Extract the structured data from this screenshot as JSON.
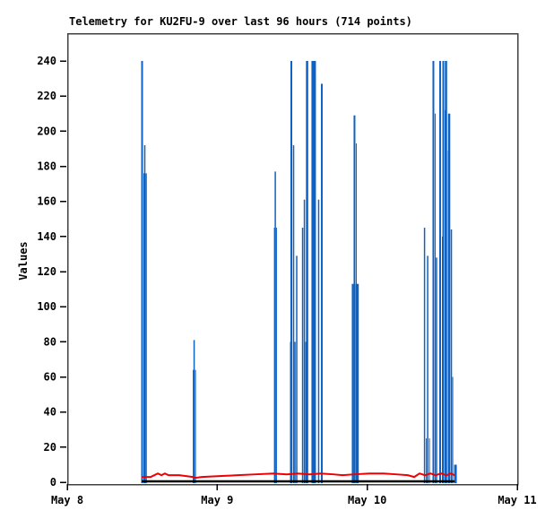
{
  "title": "Telemetry for KU2FU-9 over last 96 hours (714 points)",
  "chart_data": {
    "type": "line",
    "subtype": "impulses-plus-line",
    "title": "Telemetry for KU2FU-9 over last 96 hours (714 points)",
    "xlabel": "",
    "ylabel": "Values",
    "ylim": [
      0,
      240
    ],
    "y_ticks": [
      0,
      20,
      40,
      60,
      80,
      100,
      120,
      140,
      160,
      180,
      200,
      220,
      240
    ],
    "x_ticks": [
      {
        "label": "May 8",
        "t": 0
      },
      {
        "label": "May 9",
        "t": 1
      },
      {
        "label": "May 10",
        "t": 2
      },
      {
        "label": "May 11",
        "t": 3
      }
    ],
    "x_unit": "days after May 8",
    "grid": false,
    "legend_position": "none",
    "colors": {
      "impulses": "#0d62c4",
      "trend": "#ee0000",
      "baseline": "#000000",
      "border": "#404040",
      "text": "#000000"
    },
    "impulses_note": "each point = [t_days_after_May8, value, bar_width_px]",
    "impulses": [
      [
        0.499,
        240,
        2
      ],
      [
        0.511,
        176,
        1
      ],
      [
        0.517,
        192,
        1.5
      ],
      [
        0.526,
        176,
        1.5
      ],
      [
        0.84,
        64,
        1
      ],
      [
        0.846,
        81,
        1.5
      ],
      [
        0.855,
        64,
        1
      ],
      [
        1.381,
        145,
        1
      ],
      [
        1.387,
        177,
        1.5
      ],
      [
        1.395,
        145,
        1
      ],
      [
        1.488,
        80,
        1
      ],
      [
        1.494,
        240,
        2
      ],
      [
        1.509,
        192,
        1.5
      ],
      [
        1.518,
        80,
        1.5
      ],
      [
        1.53,
        129,
        1.5
      ],
      [
        1.569,
        145,
        1.5
      ],
      [
        1.581,
        161,
        1.5
      ],
      [
        1.59,
        80,
        1
      ],
      [
        1.599,
        240,
        2.5
      ],
      [
        1.643,
        240,
        5
      ],
      [
        1.676,
        161,
        1.5
      ],
      [
        1.697,
        227,
        2
      ],
      [
        1.903,
        113,
        2
      ],
      [
        1.915,
        209,
        2
      ],
      [
        1.927,
        193,
        1
      ],
      [
        1.933,
        113,
        3.5
      ],
      [
        2.382,
        145,
        1.5
      ],
      [
        2.394,
        25,
        1
      ],
      [
        2.403,
        129,
        1.5
      ],
      [
        2.415,
        25,
        1
      ],
      [
        2.441,
        240,
        2
      ],
      [
        2.453,
        210,
        1
      ],
      [
        2.462,
        128,
        1.5
      ],
      [
        2.486,
        240,
        2
      ],
      [
        2.501,
        140,
        1
      ],
      [
        2.507,
        240,
        2
      ],
      [
        2.519,
        212,
        1
      ],
      [
        2.525,
        240,
        2.5
      ],
      [
        2.54,
        189,
        1
      ],
      [
        2.546,
        210,
        2.5
      ],
      [
        2.561,
        144,
        1.5
      ],
      [
        2.57,
        60,
        1
      ],
      [
        2.588,
        10,
        3
      ]
    ],
    "trend_line_note": "each point = [t_days_after_May8, value]",
    "trend_line": [
      [
        0.496,
        3
      ],
      [
        0.556,
        3
      ],
      [
        0.58,
        4
      ],
      [
        0.604,
        5
      ],
      [
        0.628,
        4
      ],
      [
        0.651,
        5
      ],
      [
        0.675,
        4
      ],
      [
        0.747,
        4
      ],
      [
        0.837,
        3
      ],
      [
        0.855,
        2.5
      ],
      [
        0.896,
        3
      ],
      [
        1.016,
        3.5
      ],
      [
        1.135,
        4
      ],
      [
        1.255,
        4.5
      ],
      [
        1.374,
        5
      ],
      [
        1.464,
        4.5
      ],
      [
        1.536,
        5
      ],
      [
        1.614,
        4.5
      ],
      [
        1.691,
        5
      ],
      [
        1.775,
        4.5
      ],
      [
        1.835,
        4
      ],
      [
        1.912,
        4.5
      ],
      [
        2.014,
        5
      ],
      [
        2.11,
        5
      ],
      [
        2.193,
        4.5
      ],
      [
        2.271,
        4
      ],
      [
        2.313,
        3
      ],
      [
        2.349,
        5
      ],
      [
        2.385,
        4
      ],
      [
        2.421,
        5
      ],
      [
        2.456,
        4
      ],
      [
        2.492,
        5
      ],
      [
        2.528,
        4
      ],
      [
        2.558,
        5
      ],
      [
        2.582,
        4
      ]
    ],
    "zero_baseline_t": [
      0.496,
      2.582
    ]
  }
}
